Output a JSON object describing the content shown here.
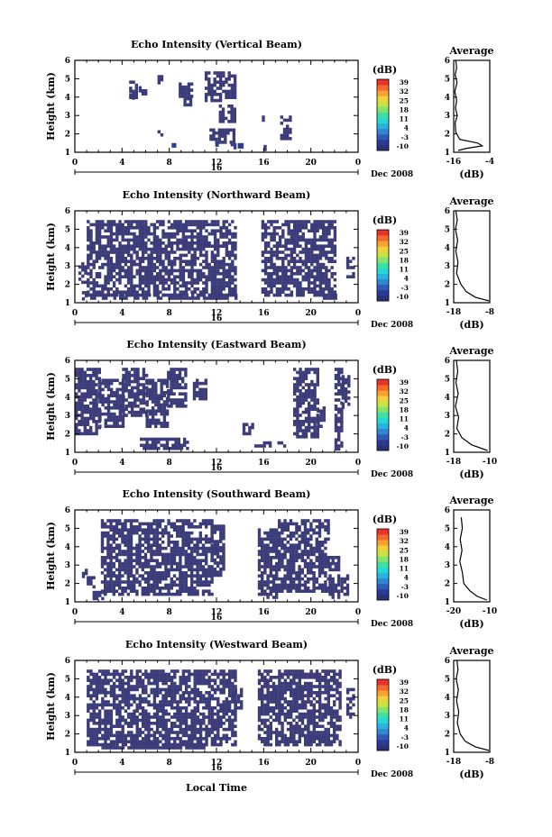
{
  "chart_data": {
    "type": "heatmap",
    "xlabel": "Local Time",
    "date_label": "Dec 2008",
    "day_label": "16",
    "x_ticks": [
      "0",
      "4",
      "8",
      "12",
      "16",
      "20",
      "0"
    ],
    "xlim": [
      0,
      24
    ],
    "ylabel": "Height (km)",
    "y_ticks": [
      "1",
      "2",
      "3",
      "4",
      "5",
      "6"
    ],
    "ylim": [
      1,
      6
    ],
    "colorbar": {
      "unit": "(dB)",
      "tick_labels": [
        "39",
        "32",
        "25",
        "18",
        "11",
        "4",
        "-3",
        "-10"
      ],
      "colors": [
        "#283276",
        "#2c3b94",
        "#2f5bb8",
        "#2f86d1",
        "#28b4de",
        "#26d8d2",
        "#3ee0a4",
        "#84e36c",
        "#c8e344",
        "#f2d23a",
        "#f7a233",
        "#f46a2d",
        "#e8332a"
      ]
    },
    "fill_color": "#3c3c7a",
    "avg_title": "Average",
    "avg_xlabel": "(dB)",
    "panels": [
      {
        "title": "Echo Intensity (Vertical Beam)",
        "avg_x_ticks": [
          "-16",
          "-4"
        ],
        "avg_xlim": [
          -16,
          -4
        ],
        "cells": [
          [
            4.6,
            5.3,
            4.0,
            4.9
          ],
          [
            5.4,
            6.0,
            4.2,
            4.6
          ],
          [
            4.6,
            5.0,
            3.8,
            4.2
          ],
          [
            7.0,
            7.3,
            4.8,
            5.2
          ],
          [
            7.0,
            7.3,
            2.0,
            2.2
          ],
          [
            8.8,
            9.8,
            4.0,
            4.8
          ],
          [
            9.2,
            9.8,
            3.6,
            4.0
          ],
          [
            11.0,
            13.6,
            3.8,
            5.4
          ],
          [
            12.2,
            13.6,
            2.6,
            3.6
          ],
          [
            11.4,
            13.4,
            1.6,
            2.3
          ],
          [
            13.2,
            13.6,
            1.2,
            1.5
          ],
          [
            15.6,
            15.9,
            2.4,
            3.0
          ],
          [
            16.0,
            16.2,
            1.2,
            1.4
          ],
          [
            17.4,
            18.2,
            1.8,
            3.0
          ]
        ],
        "high_cells": [
          [
            8.2,
            8.6,
            1.25,
            1.5
          ],
          [
            11.9,
            12.2,
            1.3,
            1.5
          ],
          [
            13.8,
            14.3,
            1.2,
            1.5
          ]
        ],
        "profile": [
          [
            -14.5,
            1.1
          ],
          [
            -12.0,
            1.2
          ],
          [
            -6.5,
            1.35
          ],
          [
            -8.0,
            1.5
          ],
          [
            -14.0,
            1.7
          ],
          [
            -15.3,
            2.1
          ],
          [
            -15.5,
            2.6
          ],
          [
            -14.8,
            3.0
          ],
          [
            -15.4,
            3.4
          ],
          [
            -15.0,
            3.8
          ],
          [
            -15.6,
            4.3
          ],
          [
            -14.9,
            4.8
          ],
          [
            -15.5,
            5.2
          ],
          [
            -15.0,
            5.6
          ],
          [
            -15.3,
            6.0
          ]
        ]
      },
      {
        "title": "Echo Intensity (Northward Beam)",
        "avg_x_ticks": [
          "-18",
          "-8"
        ],
        "avg_xlim": [
          -18,
          -8
        ],
        "cells": [
          [
            1.0,
            13.7,
            1.5,
            5.5
          ],
          [
            1.3,
            13.7,
            1.2,
            1.5
          ],
          [
            15.8,
            22.1,
            1.5,
            5.5
          ],
          [
            21.0,
            22.1,
            1.2,
            1.5
          ],
          [
            0.3,
            1.0,
            2.2,
            3.2
          ],
          [
            0.6,
            1.0,
            1.3,
            1.8
          ],
          [
            23.0,
            23.5,
            2.5,
            3.5
          ]
        ],
        "profile": [
          [
            -8.2,
            1.1
          ],
          [
            -12.0,
            1.3
          ],
          [
            -14.5,
            1.6
          ],
          [
            -16.0,
            2.0
          ],
          [
            -17.2,
            2.6
          ],
          [
            -16.8,
            3.2
          ],
          [
            -17.4,
            3.8
          ],
          [
            -16.9,
            4.4
          ],
          [
            -17.5,
            5.0
          ],
          [
            -17.0,
            5.5
          ],
          [
            -17.4,
            6.0
          ]
        ]
      },
      {
        "title": "Echo Intensity (Eastward Beam)",
        "avg_x_ticks": [
          "-18",
          "-10"
        ],
        "avg_xlim": [
          -18,
          -10
        ],
        "cells": [
          [
            0.0,
            2.0,
            2.0,
            5.6
          ],
          [
            2.0,
            4.0,
            2.5,
            5.0
          ],
          [
            4.0,
            6.0,
            3.0,
            5.6
          ],
          [
            6.0,
            7.8,
            2.5,
            5.0
          ],
          [
            7.8,
            9.5,
            3.5,
            5.6
          ],
          [
            5.5,
            9.5,
            1.2,
            1.8
          ],
          [
            10.0,
            11.0,
            4.0,
            5.0
          ],
          [
            14.2,
            15.0,
            2.0,
            2.6
          ],
          [
            15.2,
            17.8,
            1.3,
            1.6
          ],
          [
            18.5,
            20.5,
            1.8,
            5.6
          ],
          [
            20.5,
            21.0,
            2.5,
            3.5
          ],
          [
            22.0,
            22.6,
            1.2,
            5.6
          ],
          [
            22.6,
            23.2,
            3.5,
            5.2
          ]
        ],
        "profile": [
          [
            -10.5,
            1.1
          ],
          [
            -14.0,
            1.4
          ],
          [
            -16.2,
            1.8
          ],
          [
            -17.3,
            2.3
          ],
          [
            -16.9,
            2.9
          ],
          [
            -17.6,
            3.5
          ],
          [
            -17.0,
            4.2
          ],
          [
            -17.5,
            4.8
          ],
          [
            -17.1,
            5.4
          ],
          [
            -17.4,
            6.0
          ]
        ]
      },
      {
        "title": "Echo Intensity (Southward Beam)",
        "avg_x_ticks": [
          "-20",
          "-10"
        ],
        "avg_xlim": [
          -20,
          -10
        ],
        "cells": [
          [
            2.2,
            11.5,
            1.4,
            5.5
          ],
          [
            1.5,
            2.6,
            1.2,
            1.6
          ],
          [
            1.0,
            1.6,
            1.8,
            2.4
          ],
          [
            0.6,
            1.0,
            2.4,
            2.8
          ],
          [
            11.5,
            12.5,
            2.5,
            5.2
          ],
          [
            15.5,
            17.0,
            1.3,
            5.0
          ],
          [
            17.2,
            21.5,
            1.6,
            5.5
          ],
          [
            21.5,
            22.4,
            1.2,
            3.5
          ],
          [
            22.5,
            23.2,
            1.5,
            2.5
          ]
        ],
        "profile": [
          [
            -10.8,
            1.1
          ],
          [
            -13.5,
            1.3
          ],
          [
            -15.5,
            1.6
          ],
          [
            -17.2,
            2.0
          ],
          [
            -17.6,
            2.6
          ],
          [
            -18.3,
            3.2
          ],
          [
            -17.7,
            3.8
          ],
          [
            -18.2,
            4.4
          ],
          [
            -17.6,
            5.0
          ],
          [
            -17.9,
            5.6
          ]
        ]
      },
      {
        "title": "Echo Intensity (Westward Beam)",
        "avg_x_ticks": [
          "-18",
          "-8"
        ],
        "avg_xlim": [
          -18,
          -8
        ],
        "cells": [
          [
            1.0,
            13.5,
            1.5,
            5.5
          ],
          [
            2.0,
            11.0,
            1.2,
            1.5
          ],
          [
            13.5,
            14.0,
            3.5,
            4.5
          ],
          [
            15.5,
            22.5,
            1.5,
            5.5
          ],
          [
            23.0,
            23.5,
            3.0,
            4.5
          ]
        ],
        "profile": [
          [
            -8.2,
            1.1
          ],
          [
            -12.0,
            1.3
          ],
          [
            -14.8,
            1.6
          ],
          [
            -16.2,
            2.0
          ],
          [
            -17.0,
            2.6
          ],
          [
            -16.6,
            3.2
          ],
          [
            -17.2,
            3.8
          ],
          [
            -16.7,
            4.4
          ],
          [
            -17.3,
            5.0
          ],
          [
            -16.8,
            5.5
          ],
          [
            -17.1,
            6.0
          ]
        ]
      }
    ]
  }
}
